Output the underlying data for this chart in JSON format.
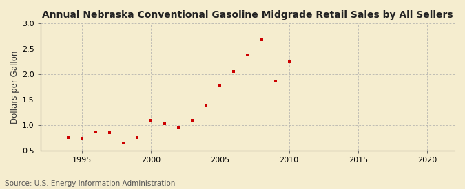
{
  "title": "Annual Nebraska Conventional Gasoline Midgrade Retail Sales by All Sellers",
  "ylabel": "Dollars per Gallon",
  "source": "Source: U.S. Energy Information Administration",
  "background_color": "#f5edcf",
  "years": [
    1994,
    1995,
    1996,
    1997,
    1998,
    1999,
    2000,
    2001,
    2002,
    2003,
    2004,
    2005,
    2006,
    2007,
    2008,
    2009,
    2010
  ],
  "values": [
    0.76,
    0.74,
    0.86,
    0.85,
    0.65,
    0.76,
    1.09,
    1.03,
    0.94,
    1.1,
    1.39,
    1.79,
    2.05,
    2.38,
    2.68,
    1.87,
    2.26
  ],
  "marker_color": "#cc0000",
  "xlim": [
    1992,
    2022
  ],
  "ylim": [
    0.5,
    3.0
  ],
  "xticks": [
    1995,
    2000,
    2005,
    2010,
    2015,
    2020
  ],
  "yticks": [
    0.5,
    1.0,
    1.5,
    2.0,
    2.5,
    3.0
  ],
  "title_fontsize": 10,
  "label_fontsize": 8.5,
  "tick_fontsize": 8,
  "source_fontsize": 7.5
}
